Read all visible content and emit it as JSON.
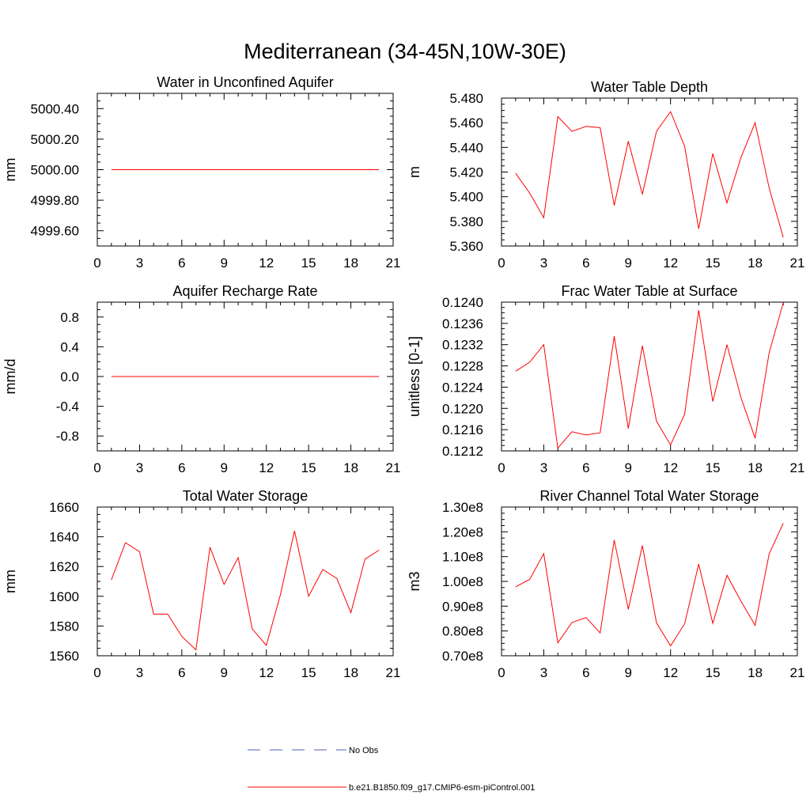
{
  "figure": {
    "title": "Mediterranean (34-45N,10W-30E)"
  },
  "legend": {
    "items": [
      {
        "label": "No Obs",
        "color": "#4b5fbf",
        "dash": true
      },
      {
        "label": "b.e21.B1850.f09_g17.CMIP6-esm-piControl.001",
        "color": "#ff0000",
        "dash": false
      }
    ]
  },
  "chart_data": [
    {
      "type": "line",
      "title": "Water in Unconfined Aquifer",
      "ylabel": "mm",
      "xlim": [
        0,
        21
      ],
      "ylim": [
        4999.5,
        5000.5
      ],
      "xticks": [
        0,
        3,
        6,
        9,
        12,
        15,
        18,
        21
      ],
      "xtick_labels": [
        "0",
        "3",
        "6",
        "9",
        "12",
        "15",
        "18",
        "21"
      ],
      "yticks": [
        4999.6,
        4999.8,
        5000.0,
        5000.2,
        5000.4
      ],
      "ytick_labels": [
        "4999.60",
        "4999.80",
        "5000.00",
        "5000.20",
        "5000.40"
      ],
      "series": [
        {
          "color": "#ff0000",
          "x": [
            1,
            2,
            3,
            4,
            5,
            6,
            7,
            8,
            9,
            10,
            11,
            12,
            13,
            14,
            15,
            16,
            17,
            18,
            19,
            20
          ],
          "values": [
            5000,
            5000,
            5000,
            5000,
            5000,
            5000,
            5000,
            5000,
            5000,
            5000,
            5000,
            5000,
            5000,
            5000,
            5000,
            5000,
            5000,
            5000,
            5000,
            5000
          ]
        }
      ]
    },
    {
      "type": "line",
      "title": "Water Table Depth",
      "ylabel": "m",
      "xlim": [
        0,
        21
      ],
      "ylim": [
        5.36,
        5.48
      ],
      "xticks": [
        0,
        3,
        6,
        9,
        12,
        15,
        18,
        21
      ],
      "xtick_labels": [
        "0",
        "3",
        "6",
        "9",
        "12",
        "15",
        "18",
        "21"
      ],
      "yticks": [
        5.36,
        5.38,
        5.4,
        5.42,
        5.44,
        5.46,
        5.48
      ],
      "ytick_labels": [
        "5.360",
        "5.380",
        "5.400",
        "5.420",
        "5.440",
        "5.460",
        "5.480"
      ],
      "series": [
        {
          "color": "#ff0000",
          "x": [
            1,
            2,
            3,
            4,
            5,
            6,
            7,
            8,
            9,
            10,
            11,
            12,
            13,
            14,
            15,
            16,
            17,
            18,
            19,
            20
          ],
          "values": [
            5.419,
            5.403,
            5.383,
            5.465,
            5.453,
            5.457,
            5.456,
            5.393,
            5.445,
            5.402,
            5.453,
            5.469,
            5.441,
            5.374,
            5.435,
            5.395,
            5.432,
            5.46,
            5.407,
            5.367
          ]
        }
      ]
    },
    {
      "type": "line",
      "title": "Aquifer Recharge Rate",
      "ylabel": "mm/d",
      "xlim": [
        0,
        21
      ],
      "ylim": [
        -1.0,
        1.0
      ],
      "xticks": [
        0,
        3,
        6,
        9,
        12,
        15,
        18,
        21
      ],
      "xtick_labels": [
        "0",
        "3",
        "6",
        "9",
        "12",
        "15",
        "18",
        "21"
      ],
      "yticks": [
        -0.8,
        -0.4,
        0.0,
        0.4,
        0.8
      ],
      "ytick_labels": [
        "-0.8",
        "-0.4",
        "0.0",
        "0.4",
        "0.8"
      ],
      "series": [
        {
          "color": "#ff0000",
          "x": [
            1,
            2,
            3,
            4,
            5,
            6,
            7,
            8,
            9,
            10,
            11,
            12,
            13,
            14,
            15,
            16,
            17,
            18,
            19,
            20
          ],
          "values": [
            0,
            0,
            0,
            0,
            0,
            0,
            0,
            0,
            0,
            0,
            0,
            0,
            0,
            0,
            0,
            0,
            0,
            0,
            0,
            0
          ]
        }
      ]
    },
    {
      "type": "line",
      "title": "Frac Water Table at Surface",
      "ylabel": "unitless [0-1]",
      "xlim": [
        0,
        21
      ],
      "ylim": [
        0.1212,
        0.124
      ],
      "xticks": [
        0,
        3,
        6,
        9,
        12,
        15,
        18,
        21
      ],
      "xtick_labels": [
        "0",
        "3",
        "6",
        "9",
        "12",
        "15",
        "18",
        "21"
      ],
      "yticks": [
        0.1212,
        0.1216,
        0.122,
        0.1224,
        0.1228,
        0.1232,
        0.1236,
        0.124
      ],
      "ytick_labels": [
        "0.1212",
        "0.1216",
        "0.1220",
        "0.1224",
        "0.1228",
        "0.1232",
        "0.1236",
        "0.1240"
      ],
      "series": [
        {
          "color": "#ff0000",
          "x": [
            1,
            2,
            3,
            4,
            5,
            6,
            7,
            8,
            9,
            10,
            11,
            12,
            13,
            14,
            15,
            16,
            17,
            18,
            19,
            20
          ],
          "values": [
            0.1227,
            0.12287,
            0.1232,
            0.12125,
            0.12156,
            0.1215,
            0.12154,
            0.12336,
            0.12162,
            0.12318,
            0.12176,
            0.12131,
            0.12189,
            0.12385,
            0.12213,
            0.1232,
            0.1222,
            0.12144,
            0.12305,
            0.12399
          ]
        }
      ]
    },
    {
      "type": "line",
      "title": "Total Water Storage",
      "ylabel": "mm",
      "xlim": [
        0,
        21
      ],
      "ylim": [
        1560,
        1660
      ],
      "xticks": [
        0,
        3,
        6,
        9,
        12,
        15,
        18,
        21
      ],
      "xtick_labels": [
        "0",
        "3",
        "6",
        "9",
        "12",
        "15",
        "18",
        "21"
      ],
      "yticks": [
        1560,
        1580,
        1600,
        1620,
        1640,
        1660
      ],
      "ytick_labels": [
        "1560",
        "1580",
        "1600",
        "1620",
        "1640",
        "1660"
      ],
      "series": [
        {
          "color": "#ff0000",
          "x": [
            1,
            2,
            3,
            4,
            5,
            6,
            7,
            8,
            9,
            10,
            11,
            12,
            13,
            14,
            15,
            16,
            17,
            18,
            19,
            20
          ],
          "values": [
            1611,
            1636,
            1630,
            1588,
            1588,
            1573,
            1564,
            1633,
            1608,
            1626,
            1578,
            1567,
            1601,
            1644,
            1600,
            1618,
            1612,
            1589,
            1625,
            1631
          ]
        }
      ]
    },
    {
      "type": "line",
      "title": "River Channel Total Water Storage",
      "ylabel": "m3",
      "xlim": [
        0,
        21
      ],
      "ylim": [
        70000000,
        130000000
      ],
      "xticks": [
        0,
        3,
        6,
        9,
        12,
        15,
        18,
        21
      ],
      "xtick_labels": [
        "0",
        "3",
        "6",
        "9",
        "12",
        "15",
        "18",
        "21"
      ],
      "yticks": [
        70000000,
        80000000,
        90000000,
        100000000,
        110000000,
        120000000,
        130000000
      ],
      "ytick_labels": [
        "0.70e8",
        "0.80e8",
        "0.90e8",
        "1.00e8",
        "1.10e8",
        "1.20e8",
        "1.30e8"
      ],
      "series": [
        {
          "color": "#ff0000",
          "x": [
            1,
            2,
            3,
            4,
            5,
            6,
            7,
            8,
            9,
            10,
            11,
            12,
            13,
            14,
            15,
            16,
            17,
            18,
            19,
            20
          ],
          "values": [
            97800000,
            100800000,
            111200000,
            75200000,
            83400000,
            85400000,
            79200000,
            116700000,
            88700000,
            114500000,
            83300000,
            74000000,
            82900000,
            107000000,
            83100000,
            102500000,
            92000000,
            82300000,
            111100000,
            123500000
          ]
        }
      ]
    }
  ]
}
